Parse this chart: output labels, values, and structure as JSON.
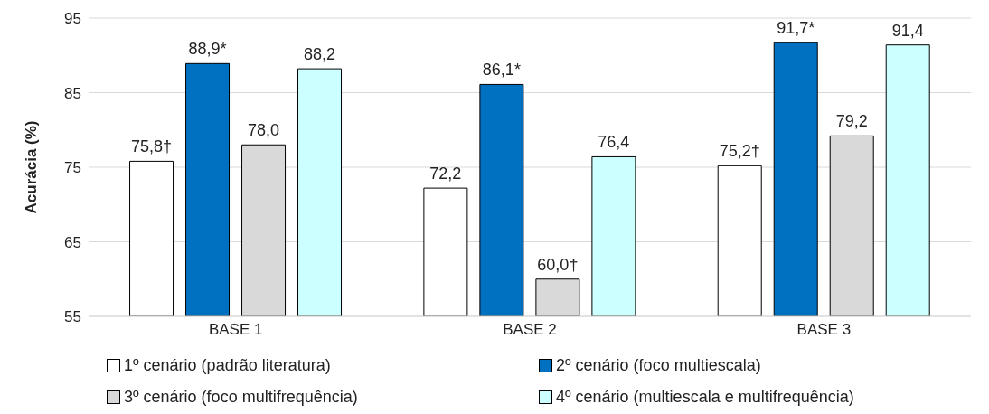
{
  "chart_data": {
    "type": "bar",
    "ylabel": "Acurácia (%)",
    "categories": [
      "BASE 1",
      "BASE 2",
      "BASE 3"
    ],
    "series": [
      {
        "name": "1º cenário (padrão literatura)",
        "color": "#ffffff",
        "values": [
          75.8,
          72.2,
          75.2
        ],
        "value_labels": [
          "75,8†",
          "72,2",
          "75,2†"
        ]
      },
      {
        "name": "2º cenário (foco multiescala)",
        "color": "#0070c0",
        "values": [
          88.9,
          86.1,
          91.7
        ],
        "value_labels": [
          "88,9*",
          "86,1*",
          "91,7*"
        ]
      },
      {
        "name": "3º cenário (foco multifrequência)",
        "color": "#d9d9d9",
        "values": [
          78.0,
          60.0,
          79.2
        ],
        "value_labels": [
          "78,0",
          "60,0†",
          "79,2"
        ]
      },
      {
        "name": "4º cenário (multiescala e multifrequência)",
        "color": "#ccffff",
        "values": [
          88.2,
          76.4,
          91.4
        ],
        "value_labels": [
          "88,2",
          "76,4",
          "91,4"
        ]
      }
    ],
    "ylim": [
      55,
      95
    ],
    "yticks": [
      55,
      65,
      75,
      85,
      95
    ],
    "grid": "y",
    "legend": "bottom"
  }
}
